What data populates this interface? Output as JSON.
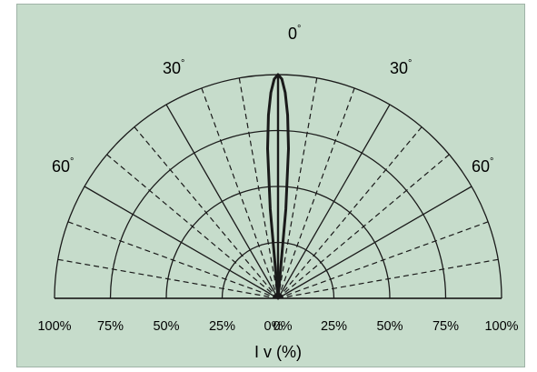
{
  "chart_data": {
    "type": "polar",
    "background_color": "#c6dccb",
    "line_color": "#1a1a1a",
    "xlabel": "I v (%)",
    "radial_tick_labels": [
      "100%",
      "75%",
      "50%",
      "25%",
      "0%",
      "0%",
      "25%",
      "50%",
      "75%",
      "100%"
    ],
    "radial_rings": [
      25,
      50,
      75,
      100
    ],
    "angle_range_deg": [
      -90,
      90
    ],
    "solid_spokes_deg": [
      -90,
      -60,
      -30,
      0,
      30,
      60,
      90
    ],
    "dashed_spokes_deg": [
      -80,
      -70,
      -50,
      -40,
      -20,
      -10,
      10,
      20,
      40,
      50,
      70,
      80
    ],
    "angle_labels": [
      {
        "text": "0",
        "angle": 0
      },
      {
        "text": "30",
        "angle": -30
      },
      {
        "text": "30",
        "angle": 30
      },
      {
        "text": "60",
        "angle": -60
      },
      {
        "text": "60",
        "angle": 60
      }
    ],
    "degree_symbol": "°",
    "series": [
      {
        "angles_deg": [
          -6,
          -5,
          -4,
          -3,
          -2,
          -1,
          0,
          1,
          2,
          3,
          4,
          5,
          6
        ],
        "values": [
          0,
          40,
          67,
          82,
          92,
          98,
          100,
          98,
          92,
          82,
          67,
          40,
          0
        ]
      }
    ]
  }
}
